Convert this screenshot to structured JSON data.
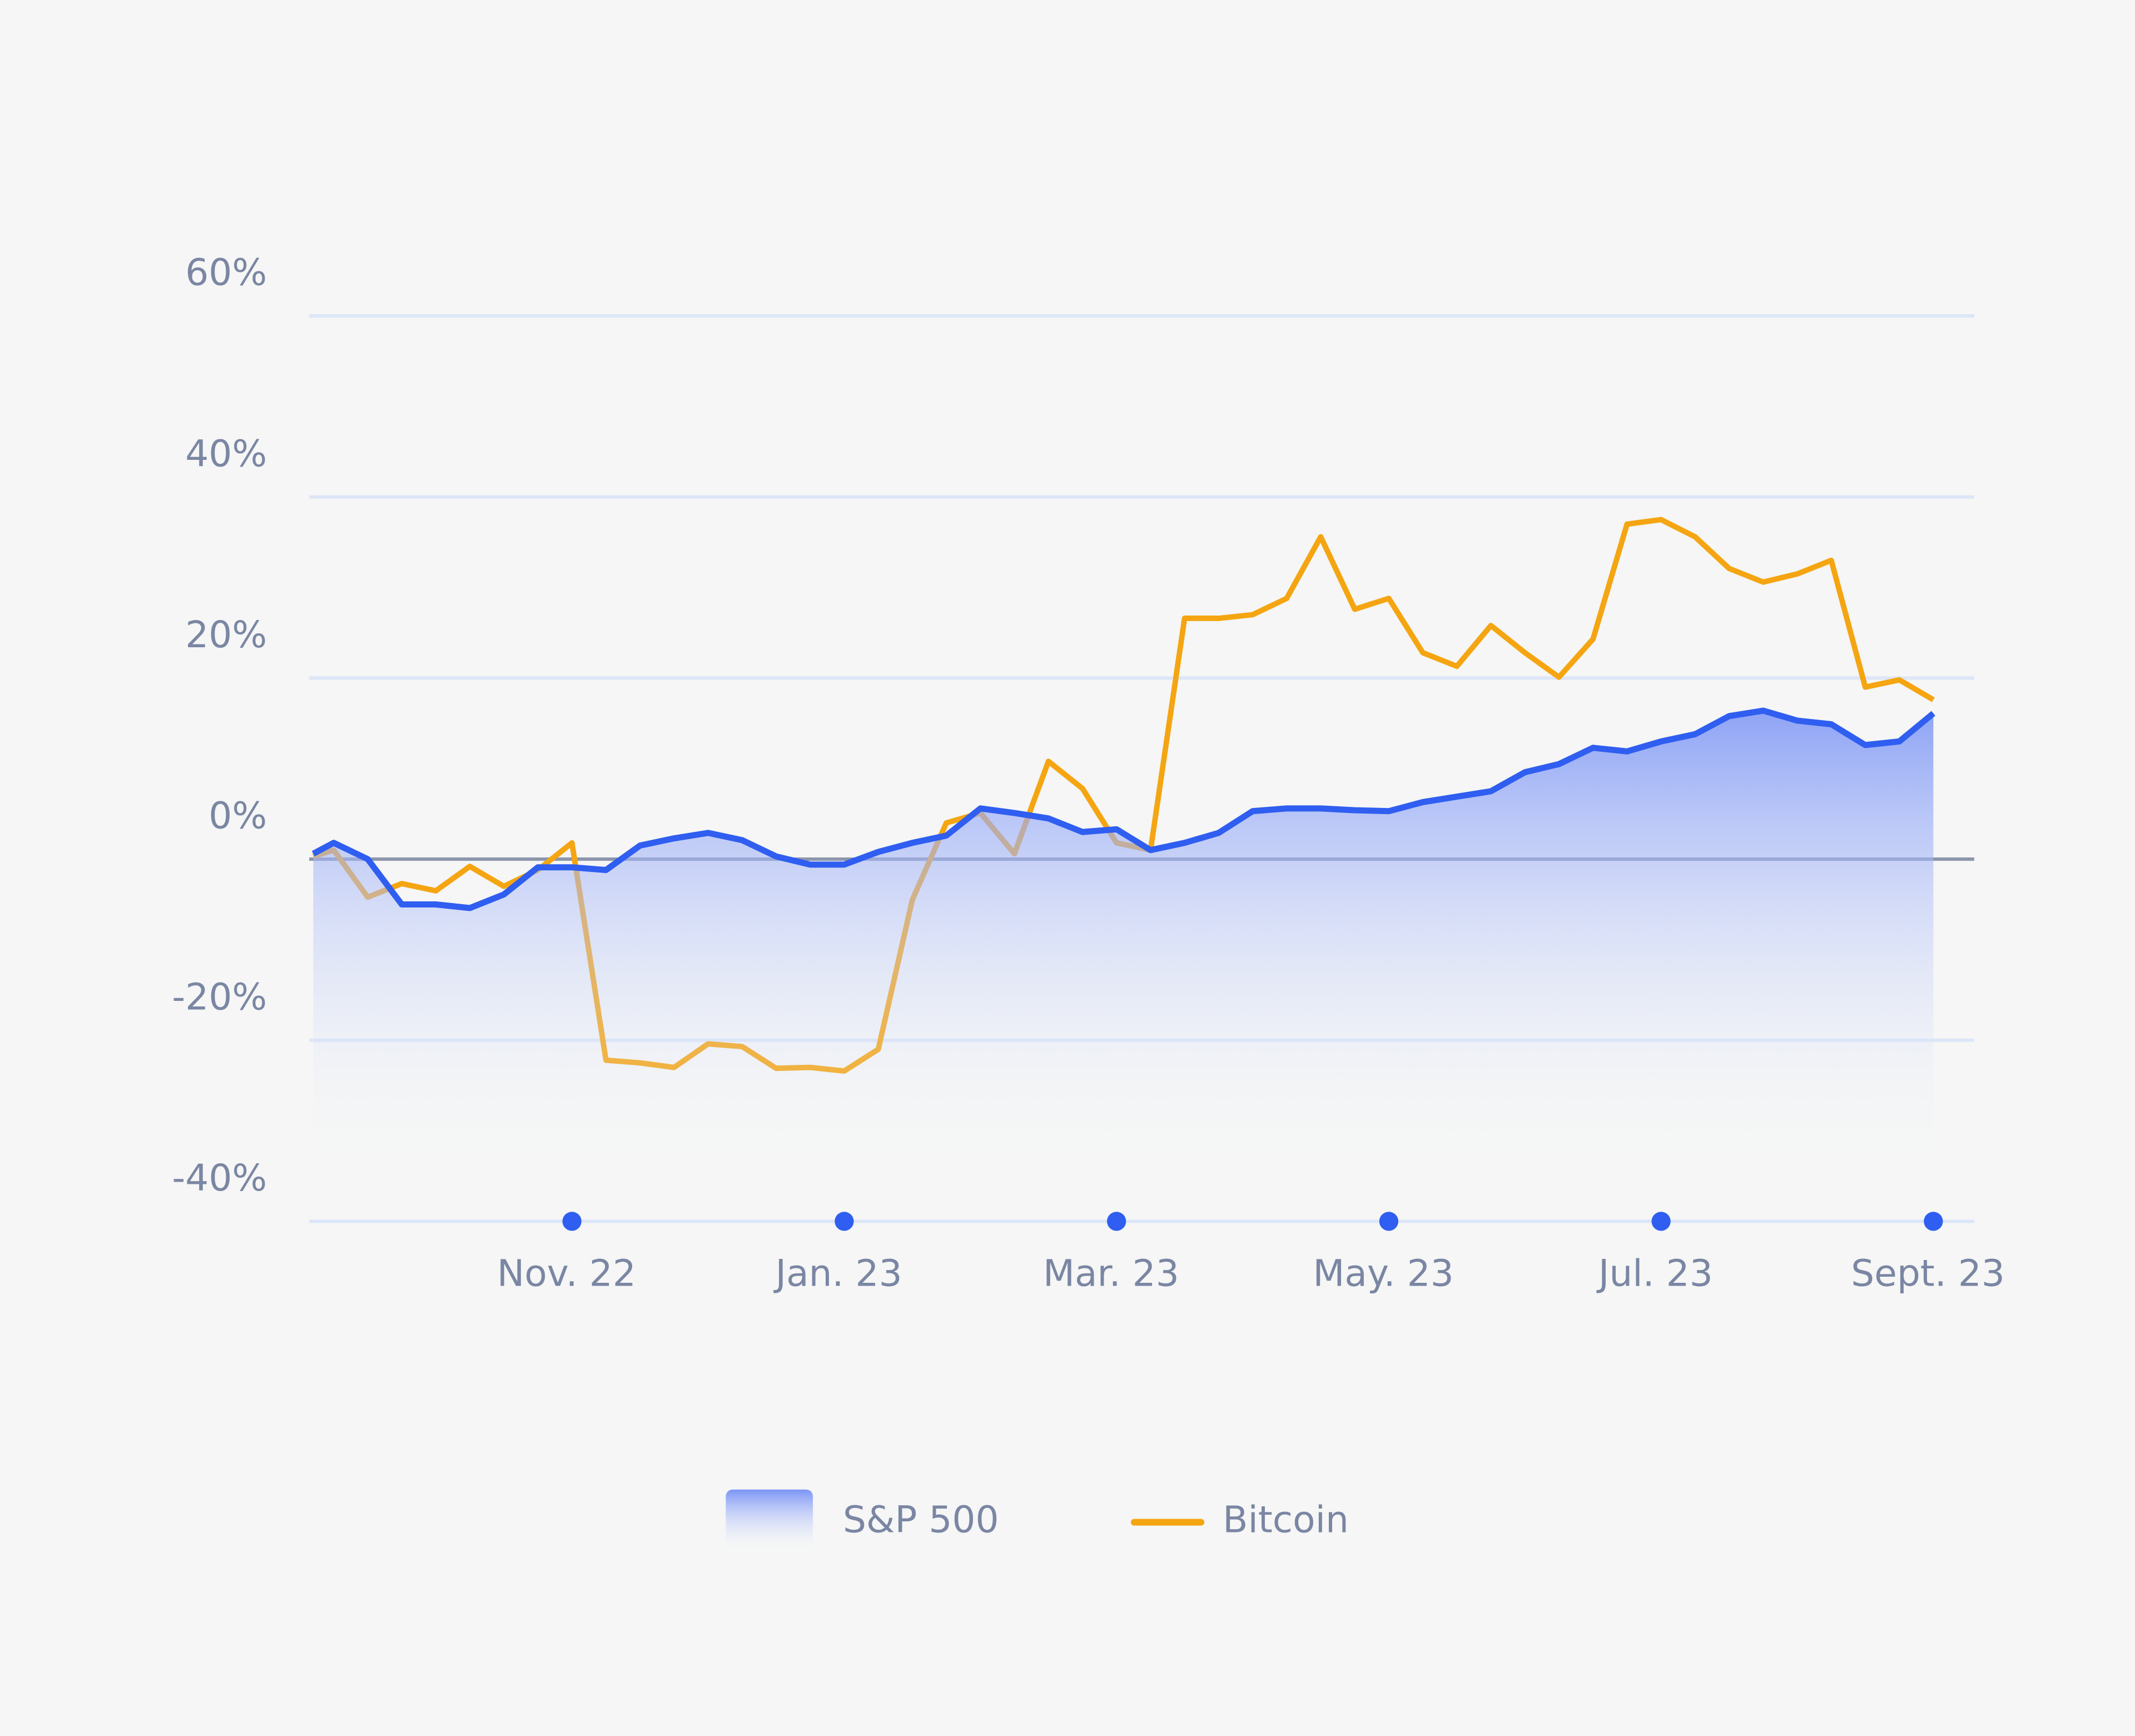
{
  "chart_data": {
    "type": "line",
    "categories": [
      null,
      null,
      null,
      null,
      null,
      null,
      null,
      null,
      "Nov. 22",
      null,
      null,
      null,
      null,
      null,
      null,
      null,
      "Jan. 23",
      null,
      null,
      null,
      null,
      null,
      null,
      null,
      "Mar. 23",
      null,
      null,
      null,
      null,
      null,
      null,
      null,
      "May. 23",
      null,
      null,
      null,
      null,
      null,
      null,
      null,
      "Jul. 23",
      null,
      null,
      null,
      null,
      null,
      null,
      null,
      "Sept. 23"
    ],
    "series": [
      {
        "name": "S&P 500",
        "color": "#2f5ef0",
        "area": true,
        "values": [
          0.6,
          1.8,
          0,
          -5,
          -5,
          -5.4,
          -3.9,
          -0.9,
          -0.9,
          -1.2,
          1.5,
          2.3,
          2.9,
          2.1,
          0.3,
          -0.6,
          -0.6,
          0.8,
          1.8,
          2.6,
          5.6,
          5.1,
          4.5,
          3,
          3.3,
          1,
          1.8,
          2.9,
          5.3,
          5.6,
          5.6,
          5.4,
          5.3,
          6.3,
          6.9,
          7.5,
          9.6,
          10.5,
          12.3,
          11.9,
          13,
          13.8,
          15.8,
          16.4,
          15.3,
          14.9,
          12.6,
          13,
          16.1
        ]
      },
      {
        "name": "Bitcoin",
        "color": "#f5a511",
        "area": false,
        "values": [
          0.3,
          1,
          -4.2,
          -2.7,
          -3.5,
          -0.8,
          -3,
          -1.2,
          1.8,
          -22.2,
          -22.5,
          -23,
          -20.4,
          -20.7,
          -23.1,
          -23,
          -23.4,
          -21,
          -4.5,
          4,
          5.1,
          0.6,
          10.8,
          7.8,
          1.8,
          1,
          26.6,
          26.6,
          27,
          28.8,
          35.6,
          27.6,
          28.8,
          22.8,
          21.3,
          25.8,
          22.8,
          20.1,
          24.3,
          37,
          37.5,
          35.6,
          32.1,
          30.6,
          31.5,
          33,
          19,
          19.8,
          17.6
        ]
      }
    ],
    "ylim": [
      -40,
      60
    ],
    "yticks": [
      {
        "value": -40,
        "label": "-40%"
      },
      {
        "value": -20,
        "label": "-20%"
      },
      {
        "value": 0,
        "label": "0%"
      },
      {
        "value": 20,
        "label": "20%"
      },
      {
        "value": 40,
        "label": "40%"
      },
      {
        "value": 60,
        "label": "60%"
      }
    ],
    "grid": true
  }
}
